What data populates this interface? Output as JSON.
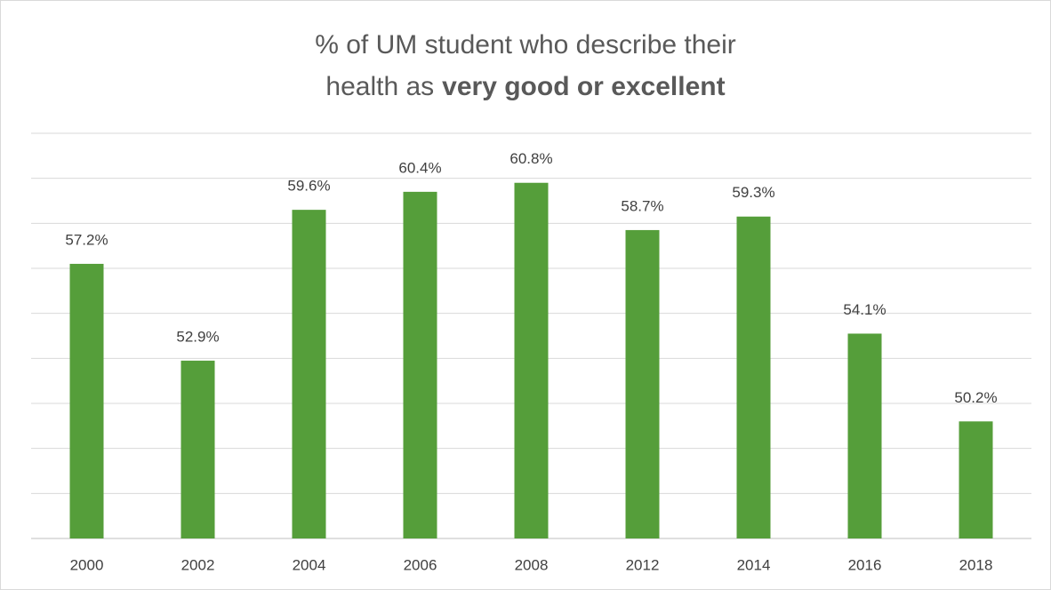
{
  "chart_data": {
    "type": "bar",
    "title": {
      "line1": "% of UM student who describe their",
      "line2": "health as",
      "line2_bold": "very good or excellent"
    },
    "categories": [
      "2000",
      "2002",
      "2004",
      "2006",
      "2008",
      "2012",
      "2014",
      "2016",
      "2018"
    ],
    "values": [
      57.2,
      52.9,
      59.6,
      60.4,
      60.8,
      58.7,
      59.3,
      54.1,
      50.2
    ],
    "value_labels": [
      "57.2%",
      "52.9%",
      "59.6%",
      "60.4%",
      "60.8%",
      "58.7%",
      "59.3%",
      "54.1%",
      "50.2%"
    ],
    "color": "#559e3a",
    "ylim": [
      45,
      63
    ],
    "yticks": [
      45,
      47,
      49,
      51,
      53,
      55,
      57,
      59,
      61,
      63
    ],
    "grid": true
  }
}
